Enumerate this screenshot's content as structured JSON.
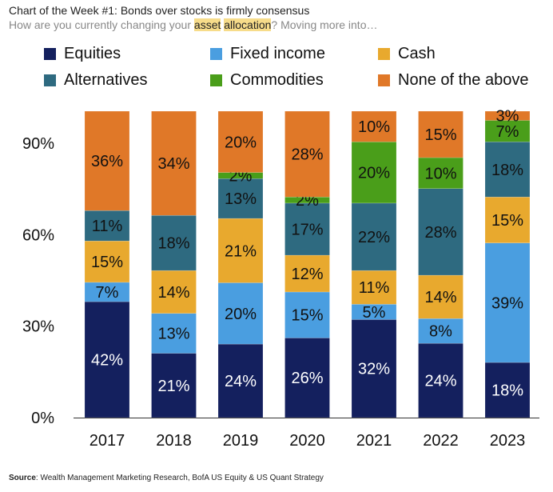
{
  "header": {
    "title": "Chart of the Week #1: Bonds over stocks is firmly consensus",
    "subtitle_before": "How are you currently changing your ",
    "subtitle_hl1": "asset",
    "subtitle_space": " ",
    "subtitle_hl2": "allocation",
    "subtitle_after": "? Moving more into…"
  },
  "source": {
    "label": "Source",
    "text": ": Wealth Management Marketing Research, BofA US Equity & US Quant Strategy"
  },
  "chart_data": {
    "type": "bar",
    "stacked": true,
    "title": "",
    "xlabel": "",
    "ylabel": "",
    "categories": [
      "2017",
      "2018",
      "2019",
      "2020",
      "2021",
      "2022",
      "2023"
    ],
    "ylim": [
      0,
      100
    ],
    "yticks": [
      0,
      30,
      60,
      90
    ],
    "ytick_labels": [
      "0%",
      "30%",
      "60%",
      "90%"
    ],
    "grid": false,
    "legend_placement": "top",
    "series": [
      {
        "name": "Equities",
        "color": "#14205e",
        "values": [
          42,
          21,
          24,
          26,
          32,
          24,
          18
        ]
      },
      {
        "name": "Fixed income",
        "color": "#4a9ee0",
        "values": [
          7,
          13,
          20,
          15,
          5,
          8,
          39
        ]
      },
      {
        "name": "Cash",
        "color": "#e8a92e",
        "values": [
          15,
          14,
          21,
          12,
          11,
          14,
          15
        ]
      },
      {
        "name": "Alternatives",
        "color": "#2e6a80",
        "values": [
          11,
          18,
          13,
          17,
          22,
          28,
          18
        ]
      },
      {
        "name": "Commodities",
        "color": "#4a9e1a",
        "values": [
          0,
          0,
          2,
          2,
          20,
          10,
          7
        ]
      },
      {
        "name": "None of the above",
        "color": "#e07828",
        "values": [
          36,
          34,
          20,
          28,
          10,
          15,
          3
        ]
      }
    ]
  }
}
